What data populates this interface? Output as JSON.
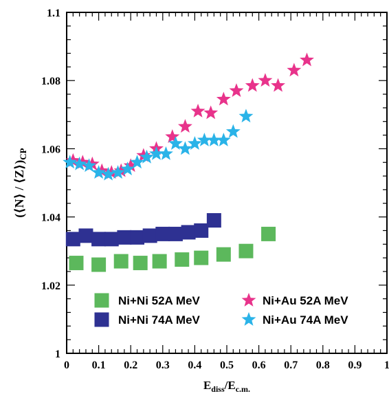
{
  "chart_data": {
    "type": "scatter",
    "xlabel": {
      "main": "E",
      "sub1": "diss",
      "sep": "/E",
      "sub2": "c.m."
    },
    "ylabel": {
      "main": "(⟨N⟩ / ⟨Z⟩)",
      "sub": "CP"
    },
    "xlim": [
      0,
      1
    ],
    "ylim": [
      1,
      1.1
    ],
    "x_ticks": [
      "0",
      "0.1",
      "0.2",
      "0.3",
      "0.4",
      "0.5",
      "0.6",
      "0.7",
      "0.8",
      "0.9",
      "1"
    ],
    "y_ticks": [
      "1",
      "1.02",
      "1.04",
      "1.06",
      "1.08",
      "1.1"
    ],
    "grid": false,
    "legend_position": "bottom-center",
    "series": [
      {
        "name": "Ni+Ni 52A MeV",
        "marker": "square",
        "color": "#5cb85c",
        "x": [
          0.03,
          0.1,
          0.17,
          0.23,
          0.29,
          0.36,
          0.42,
          0.49,
          0.56,
          0.63
        ],
        "y": [
          1.0265,
          1.026,
          1.027,
          1.0265,
          1.027,
          1.0275,
          1.028,
          1.029,
          1.03,
          1.035
        ]
      },
      {
        "name": "Ni+Ni 74A MeV",
        "marker": "square",
        "color": "#2e3192",
        "x": [
          0.02,
          0.06,
          0.1,
          0.14,
          0.18,
          0.22,
          0.26,
          0.3,
          0.34,
          0.38,
          0.42,
          0.46
        ],
        "y": [
          1.0335,
          1.0345,
          1.0335,
          1.0335,
          1.034,
          1.034,
          1.0345,
          1.035,
          1.035,
          1.0355,
          1.036,
          1.039
        ]
      },
      {
        "name": "Ni+Au 52A MeV",
        "marker": "star",
        "color": "#e8338b",
        "x": [
          0.02,
          0.05,
          0.08,
          0.11,
          0.14,
          0.17,
          0.2,
          0.24,
          0.28,
          0.33,
          0.37,
          0.41,
          0.45,
          0.49,
          0.53,
          0.58,
          0.62,
          0.66,
          0.71,
          0.75
        ],
        "y": [
          1.0565,
          1.056,
          1.0555,
          1.0535,
          1.053,
          1.0535,
          1.055,
          1.058,
          1.06,
          1.0635,
          1.0665,
          1.071,
          1.0705,
          1.0745,
          1.077,
          1.0785,
          1.08,
          1.0785,
          1.083,
          1.086
        ]
      },
      {
        "name": "Ni+Au 74A MeV",
        "marker": "star",
        "color": "#2ab3e8",
        "x": [
          0.01,
          0.04,
          0.07,
          0.1,
          0.13,
          0.16,
          0.19,
          0.22,
          0.25,
          0.28,
          0.31,
          0.34,
          0.37,
          0.4,
          0.43,
          0.46,
          0.49,
          0.52,
          0.56
        ],
        "y": [
          1.056,
          1.0555,
          1.055,
          1.053,
          1.0525,
          1.053,
          1.054,
          1.056,
          1.0575,
          1.0585,
          1.0585,
          1.0615,
          1.06,
          1.0615,
          1.0625,
          1.0625,
          1.0625,
          1.065,
          1.0695
        ]
      }
    ]
  }
}
